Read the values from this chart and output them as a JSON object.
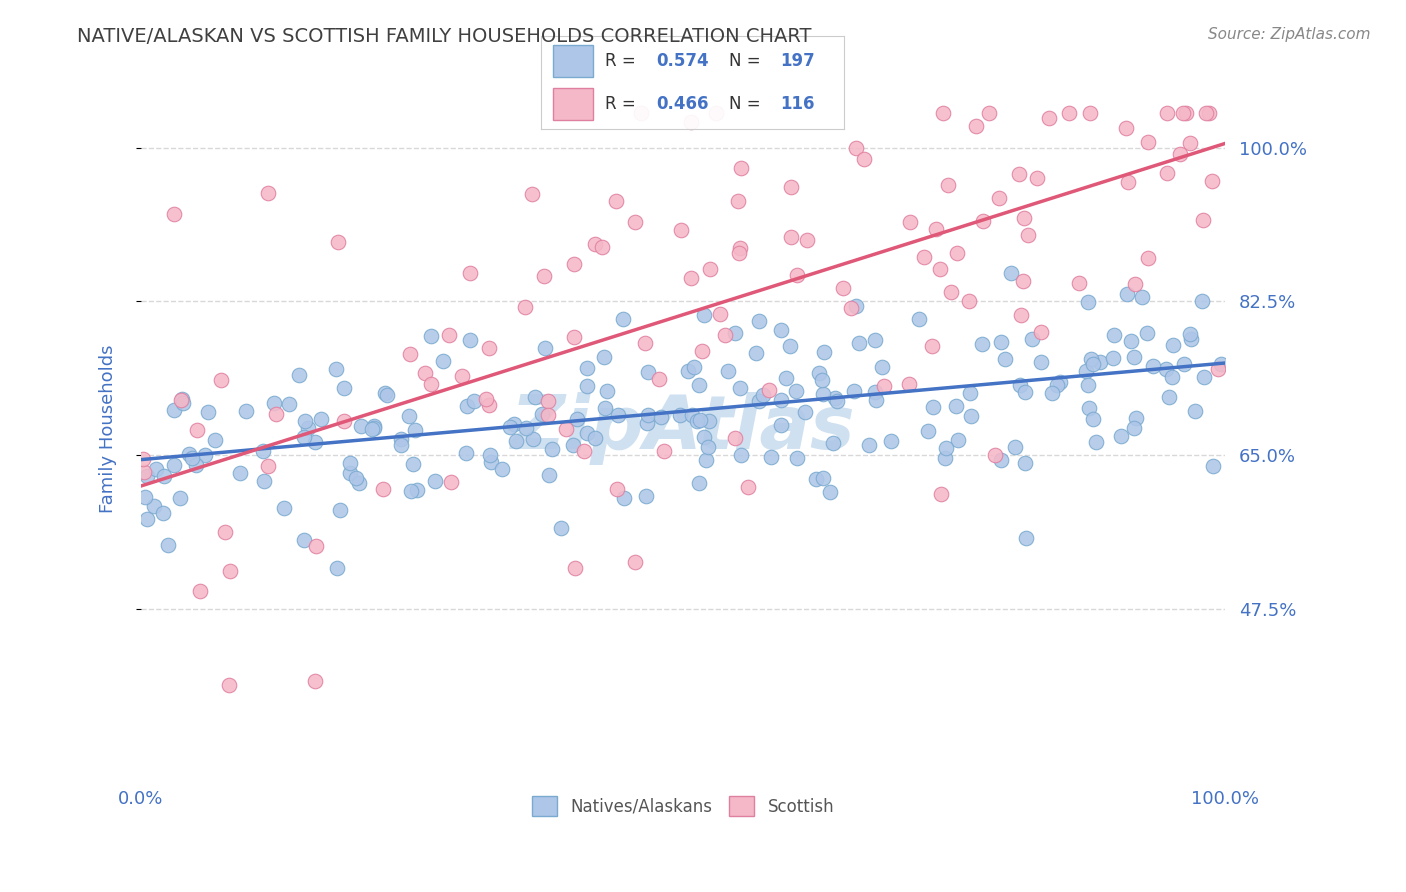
{
  "title": "NATIVE/ALASKAN VS SCOTTISH FAMILY HOUSEHOLDS CORRELATION CHART",
  "source": "Source: ZipAtlas.com",
  "ylabel": "Family Households",
  "ytick_labels": [
    "100.0%",
    "82.5%",
    "65.0%",
    "47.5%"
  ],
  "ytick_values": [
    1.0,
    0.825,
    0.65,
    0.475
  ],
  "xlim": [
    0.0,
    1.0
  ],
  "ylim": [
    0.28,
    1.08
  ],
  "blue_R": 0.574,
  "blue_N": 197,
  "pink_R": 0.466,
  "pink_N": 116,
  "blue_color": "#aec6e8",
  "pink_color": "#f5b8c8",
  "blue_line_color": "#4472c4",
  "pink_line_color": "#e05878",
  "blue_edge_color": "#7aaad0",
  "pink_edge_color": "#e080a0",
  "watermark_color": "#cfe0f0",
  "legend_label_blue": "Natives/Alaskans",
  "legend_label_pink": "Scottish",
  "title_color": "#404040",
  "source_color": "#888888",
  "axis_label_color": "#4472c4",
  "ytick_color": "#4472c4",
  "grid_color": "#d8d8d8",
  "background_color": "#ffffff",
  "blue_line_start_y": 0.645,
  "blue_line_end_y": 0.755,
  "pink_line_start_y": 0.615,
  "pink_line_end_y": 1.005
}
